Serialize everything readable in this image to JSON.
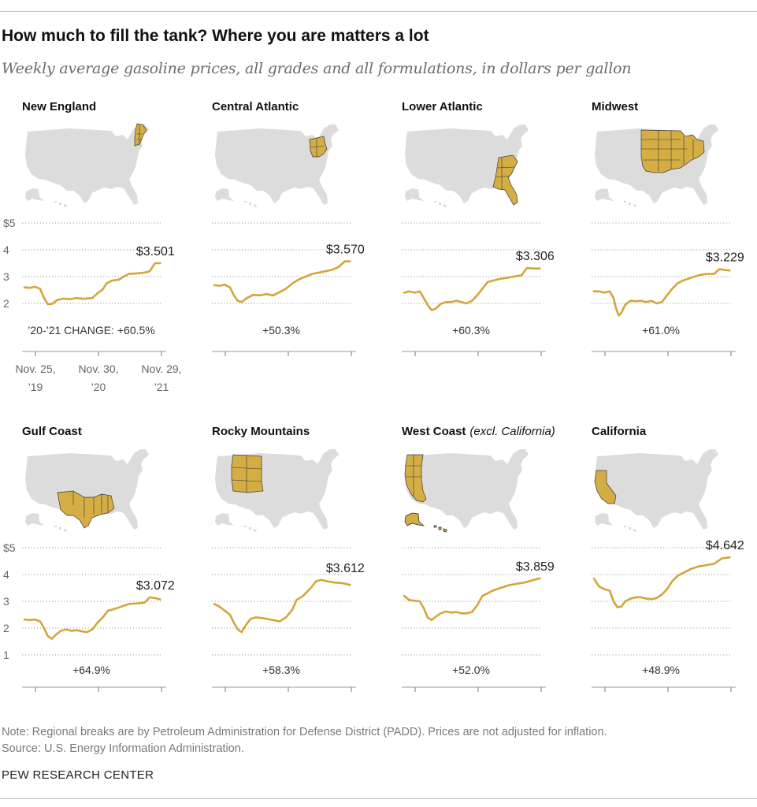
{
  "title": "How much to fill the tank? Where you are matters a lot",
  "subtitle": "Weekly average gasoline prices, all grades and all formulations, in dollars per gallon",
  "note": "Note: Regional breaks are by Petroleum Administration for Defense District (PADD). Prices are not adjusted for inflation.",
  "source": "Source: U.S. Energy Information Administration.",
  "organization": "PEW RESEARCH CENTER",
  "colors": {
    "line": "#d2a63a",
    "highlight": "#d4ad45",
    "map": "#dcdcdc",
    "grid": "#9a9a9a"
  },
  "chart_data": {
    "type": "line",
    "y_ticks": [
      "$5",
      "4",
      "3",
      "2",
      "1"
    ],
    "ylim": [
      1,
      5
    ],
    "x_ticks": [
      {
        "line1": "Nov. 25,",
        "line2": "’19"
      },
      {
        "line1": "Nov. 30,",
        "line2": "’20"
      },
      {
        "line1": "Nov. 29,",
        "line2": "’21"
      }
    ],
    "change_prefix": "’20-’21 CHANGE: ",
    "x_range": [
      0,
      105
    ],
    "panels": [
      {
        "region": "New England",
        "note": "",
        "highlight": "new-england",
        "final_label": "$3.501",
        "change": "+60.5%",
        "points": [
          [
            0,
            2.6
          ],
          [
            4,
            2.58
          ],
          [
            8,
            2.62
          ],
          [
            12,
            2.55
          ],
          [
            15,
            2.2
          ],
          [
            18,
            1.97
          ],
          [
            21,
            1.98
          ],
          [
            25,
            2.12
          ],
          [
            30,
            2.18
          ],
          [
            35,
            2.16
          ],
          [
            40,
            2.2
          ],
          [
            45,
            2.17
          ],
          [
            52,
            2.2
          ],
          [
            57,
            2.42
          ],
          [
            60,
            2.52
          ],
          [
            63,
            2.75
          ],
          [
            67,
            2.85
          ],
          [
            72,
            2.88
          ],
          [
            76,
            3.0
          ],
          [
            80,
            3.1
          ],
          [
            86,
            3.12
          ],
          [
            92,
            3.15
          ],
          [
            96,
            3.2
          ],
          [
            100,
            3.5
          ],
          [
            104,
            3.501
          ]
        ]
      },
      {
        "region": "Central Atlantic",
        "note": "",
        "highlight": "central-atlantic",
        "final_label": "$3.570",
        "change": "+50.3%",
        "points": [
          [
            0,
            2.68
          ],
          [
            4,
            2.66
          ],
          [
            8,
            2.7
          ],
          [
            12,
            2.6
          ],
          [
            15,
            2.3
          ],
          [
            18,
            2.1
          ],
          [
            21,
            2.05
          ],
          [
            25,
            2.2
          ],
          [
            30,
            2.32
          ],
          [
            35,
            2.3
          ],
          [
            40,
            2.35
          ],
          [
            45,
            2.3
          ],
          [
            50,
            2.42
          ],
          [
            55,
            2.55
          ],
          [
            60,
            2.75
          ],
          [
            65,
            2.9
          ],
          [
            70,
            3.0
          ],
          [
            75,
            3.1
          ],
          [
            80,
            3.15
          ],
          [
            85,
            3.2
          ],
          [
            90,
            3.25
          ],
          [
            95,
            3.35
          ],
          [
            100,
            3.57
          ],
          [
            104,
            3.57
          ]
        ]
      },
      {
        "region": "Lower Atlantic",
        "note": "",
        "highlight": "lower-atlantic",
        "final_label": "$3.306",
        "change": "+60.3%",
        "points": [
          [
            0,
            2.4
          ],
          [
            4,
            2.45
          ],
          [
            8,
            2.4
          ],
          [
            12,
            2.45
          ],
          [
            15,
            2.2
          ],
          [
            18,
            1.95
          ],
          [
            21,
            1.75
          ],
          [
            24,
            1.8
          ],
          [
            28,
            1.98
          ],
          [
            32,
            2.05
          ],
          [
            36,
            2.05
          ],
          [
            40,
            2.1
          ],
          [
            44,
            2.05
          ],
          [
            48,
            2.0
          ],
          [
            52,
            2.1
          ],
          [
            56,
            2.3
          ],
          [
            60,
            2.55
          ],
          [
            64,
            2.8
          ],
          [
            68,
            2.85
          ],
          [
            72,
            2.9
          ],
          [
            78,
            2.95
          ],
          [
            84,
            3.0
          ],
          [
            90,
            3.05
          ],
          [
            94,
            3.32
          ],
          [
            100,
            3.3
          ],
          [
            104,
            3.306
          ]
        ]
      },
      {
        "region": "Midwest",
        "note": "",
        "highlight": "midwest",
        "final_label": "$3.229",
        "change": "+61.0%",
        "points": [
          [
            0,
            2.45
          ],
          [
            4,
            2.45
          ],
          [
            8,
            2.4
          ],
          [
            12,
            2.45
          ],
          [
            15,
            2.2
          ],
          [
            17,
            1.8
          ],
          [
            19,
            1.55
          ],
          [
            21,
            1.65
          ],
          [
            24,
            1.95
          ],
          [
            28,
            2.1
          ],
          [
            32,
            2.08
          ],
          [
            36,
            2.1
          ],
          [
            40,
            2.05
          ],
          [
            44,
            2.1
          ],
          [
            48,
            2.0
          ],
          [
            52,
            2.05
          ],
          [
            56,
            2.3
          ],
          [
            60,
            2.55
          ],
          [
            64,
            2.75
          ],
          [
            68,
            2.85
          ],
          [
            74,
            2.95
          ],
          [
            80,
            3.05
          ],
          [
            86,
            3.1
          ],
          [
            92,
            3.1
          ],
          [
            96,
            3.28
          ],
          [
            100,
            3.25
          ],
          [
            104,
            3.229
          ]
        ]
      },
      {
        "region": "Gulf Coast",
        "note": "",
        "highlight": "gulf-coast",
        "final_label": "$3.072",
        "change": "+64.9%",
        "points": [
          [
            0,
            2.32
          ],
          [
            4,
            2.3
          ],
          [
            8,
            2.32
          ],
          [
            12,
            2.25
          ],
          [
            15,
            2.0
          ],
          [
            18,
            1.7
          ],
          [
            21,
            1.6
          ],
          [
            24,
            1.75
          ],
          [
            28,
            1.9
          ],
          [
            32,
            1.95
          ],
          [
            36,
            1.9
          ],
          [
            40,
            1.92
          ],
          [
            44,
            1.88
          ],
          [
            48,
            1.85
          ],
          [
            52,
            1.95
          ],
          [
            56,
            2.2
          ],
          [
            60,
            2.4
          ],
          [
            64,
            2.65
          ],
          [
            68,
            2.7
          ],
          [
            74,
            2.8
          ],
          [
            80,
            2.9
          ],
          [
            86,
            2.92
          ],
          [
            92,
            2.95
          ],
          [
            96,
            3.15
          ],
          [
            100,
            3.12
          ],
          [
            104,
            3.072
          ]
        ]
      },
      {
        "region": "Rocky Mountains",
        "note": "",
        "highlight": "rocky-mountains",
        "final_label": "$3.612",
        "change": "+58.3%",
        "points": [
          [
            0,
            2.9
          ],
          [
            4,
            2.8
          ],
          [
            8,
            2.65
          ],
          [
            12,
            2.5
          ],
          [
            15,
            2.2
          ],
          [
            18,
            1.95
          ],
          [
            21,
            1.85
          ],
          [
            24,
            2.1
          ],
          [
            28,
            2.35
          ],
          [
            32,
            2.4
          ],
          [
            36,
            2.38
          ],
          [
            40,
            2.35
          ],
          [
            45,
            2.3
          ],
          [
            50,
            2.25
          ],
          [
            55,
            2.4
          ],
          [
            60,
            2.7
          ],
          [
            63,
            3.05
          ],
          [
            68,
            3.2
          ],
          [
            74,
            3.5
          ],
          [
            78,
            3.75
          ],
          [
            82,
            3.8
          ],
          [
            86,
            3.75
          ],
          [
            92,
            3.7
          ],
          [
            98,
            3.68
          ],
          [
            104,
            3.612
          ]
        ]
      },
      {
        "region": "West Coast",
        "note": "(excl. California)",
        "highlight": "west-coast",
        "final_label": "$3.859",
        "change": "+52.0%",
        "points": [
          [
            0,
            3.2
          ],
          [
            4,
            3.05
          ],
          [
            8,
            3.02
          ],
          [
            12,
            3.0
          ],
          [
            15,
            2.75
          ],
          [
            18,
            2.4
          ],
          [
            21,
            2.3
          ],
          [
            24,
            2.42
          ],
          [
            28,
            2.55
          ],
          [
            32,
            2.62
          ],
          [
            36,
            2.58
          ],
          [
            40,
            2.6
          ],
          [
            44,
            2.55
          ],
          [
            48,
            2.55
          ],
          [
            52,
            2.6
          ],
          [
            56,
            2.85
          ],
          [
            60,
            3.2
          ],
          [
            64,
            3.3
          ],
          [
            68,
            3.4
          ],
          [
            74,
            3.5
          ],
          [
            80,
            3.6
          ],
          [
            86,
            3.65
          ],
          [
            92,
            3.7
          ],
          [
            98,
            3.78
          ],
          [
            104,
            3.859
          ]
        ]
      },
      {
        "region": "California",
        "note": "",
        "highlight": "california",
        "final_label": "$4.642",
        "change": "+48.9%",
        "points": [
          [
            0,
            3.85
          ],
          [
            4,
            3.55
          ],
          [
            8,
            3.45
          ],
          [
            12,
            3.4
          ],
          [
            15,
            3.0
          ],
          [
            18,
            2.78
          ],
          [
            21,
            2.8
          ],
          [
            24,
            3.0
          ],
          [
            28,
            3.1
          ],
          [
            32,
            3.15
          ],
          [
            36,
            3.15
          ],
          [
            40,
            3.1
          ],
          [
            44,
            3.08
          ],
          [
            48,
            3.12
          ],
          [
            52,
            3.25
          ],
          [
            56,
            3.45
          ],
          [
            60,
            3.75
          ],
          [
            64,
            3.95
          ],
          [
            68,
            4.05
          ],
          [
            74,
            4.2
          ],
          [
            80,
            4.3
          ],
          [
            86,
            4.35
          ],
          [
            92,
            4.4
          ],
          [
            98,
            4.6
          ],
          [
            104,
            4.642
          ]
        ]
      }
    ]
  }
}
